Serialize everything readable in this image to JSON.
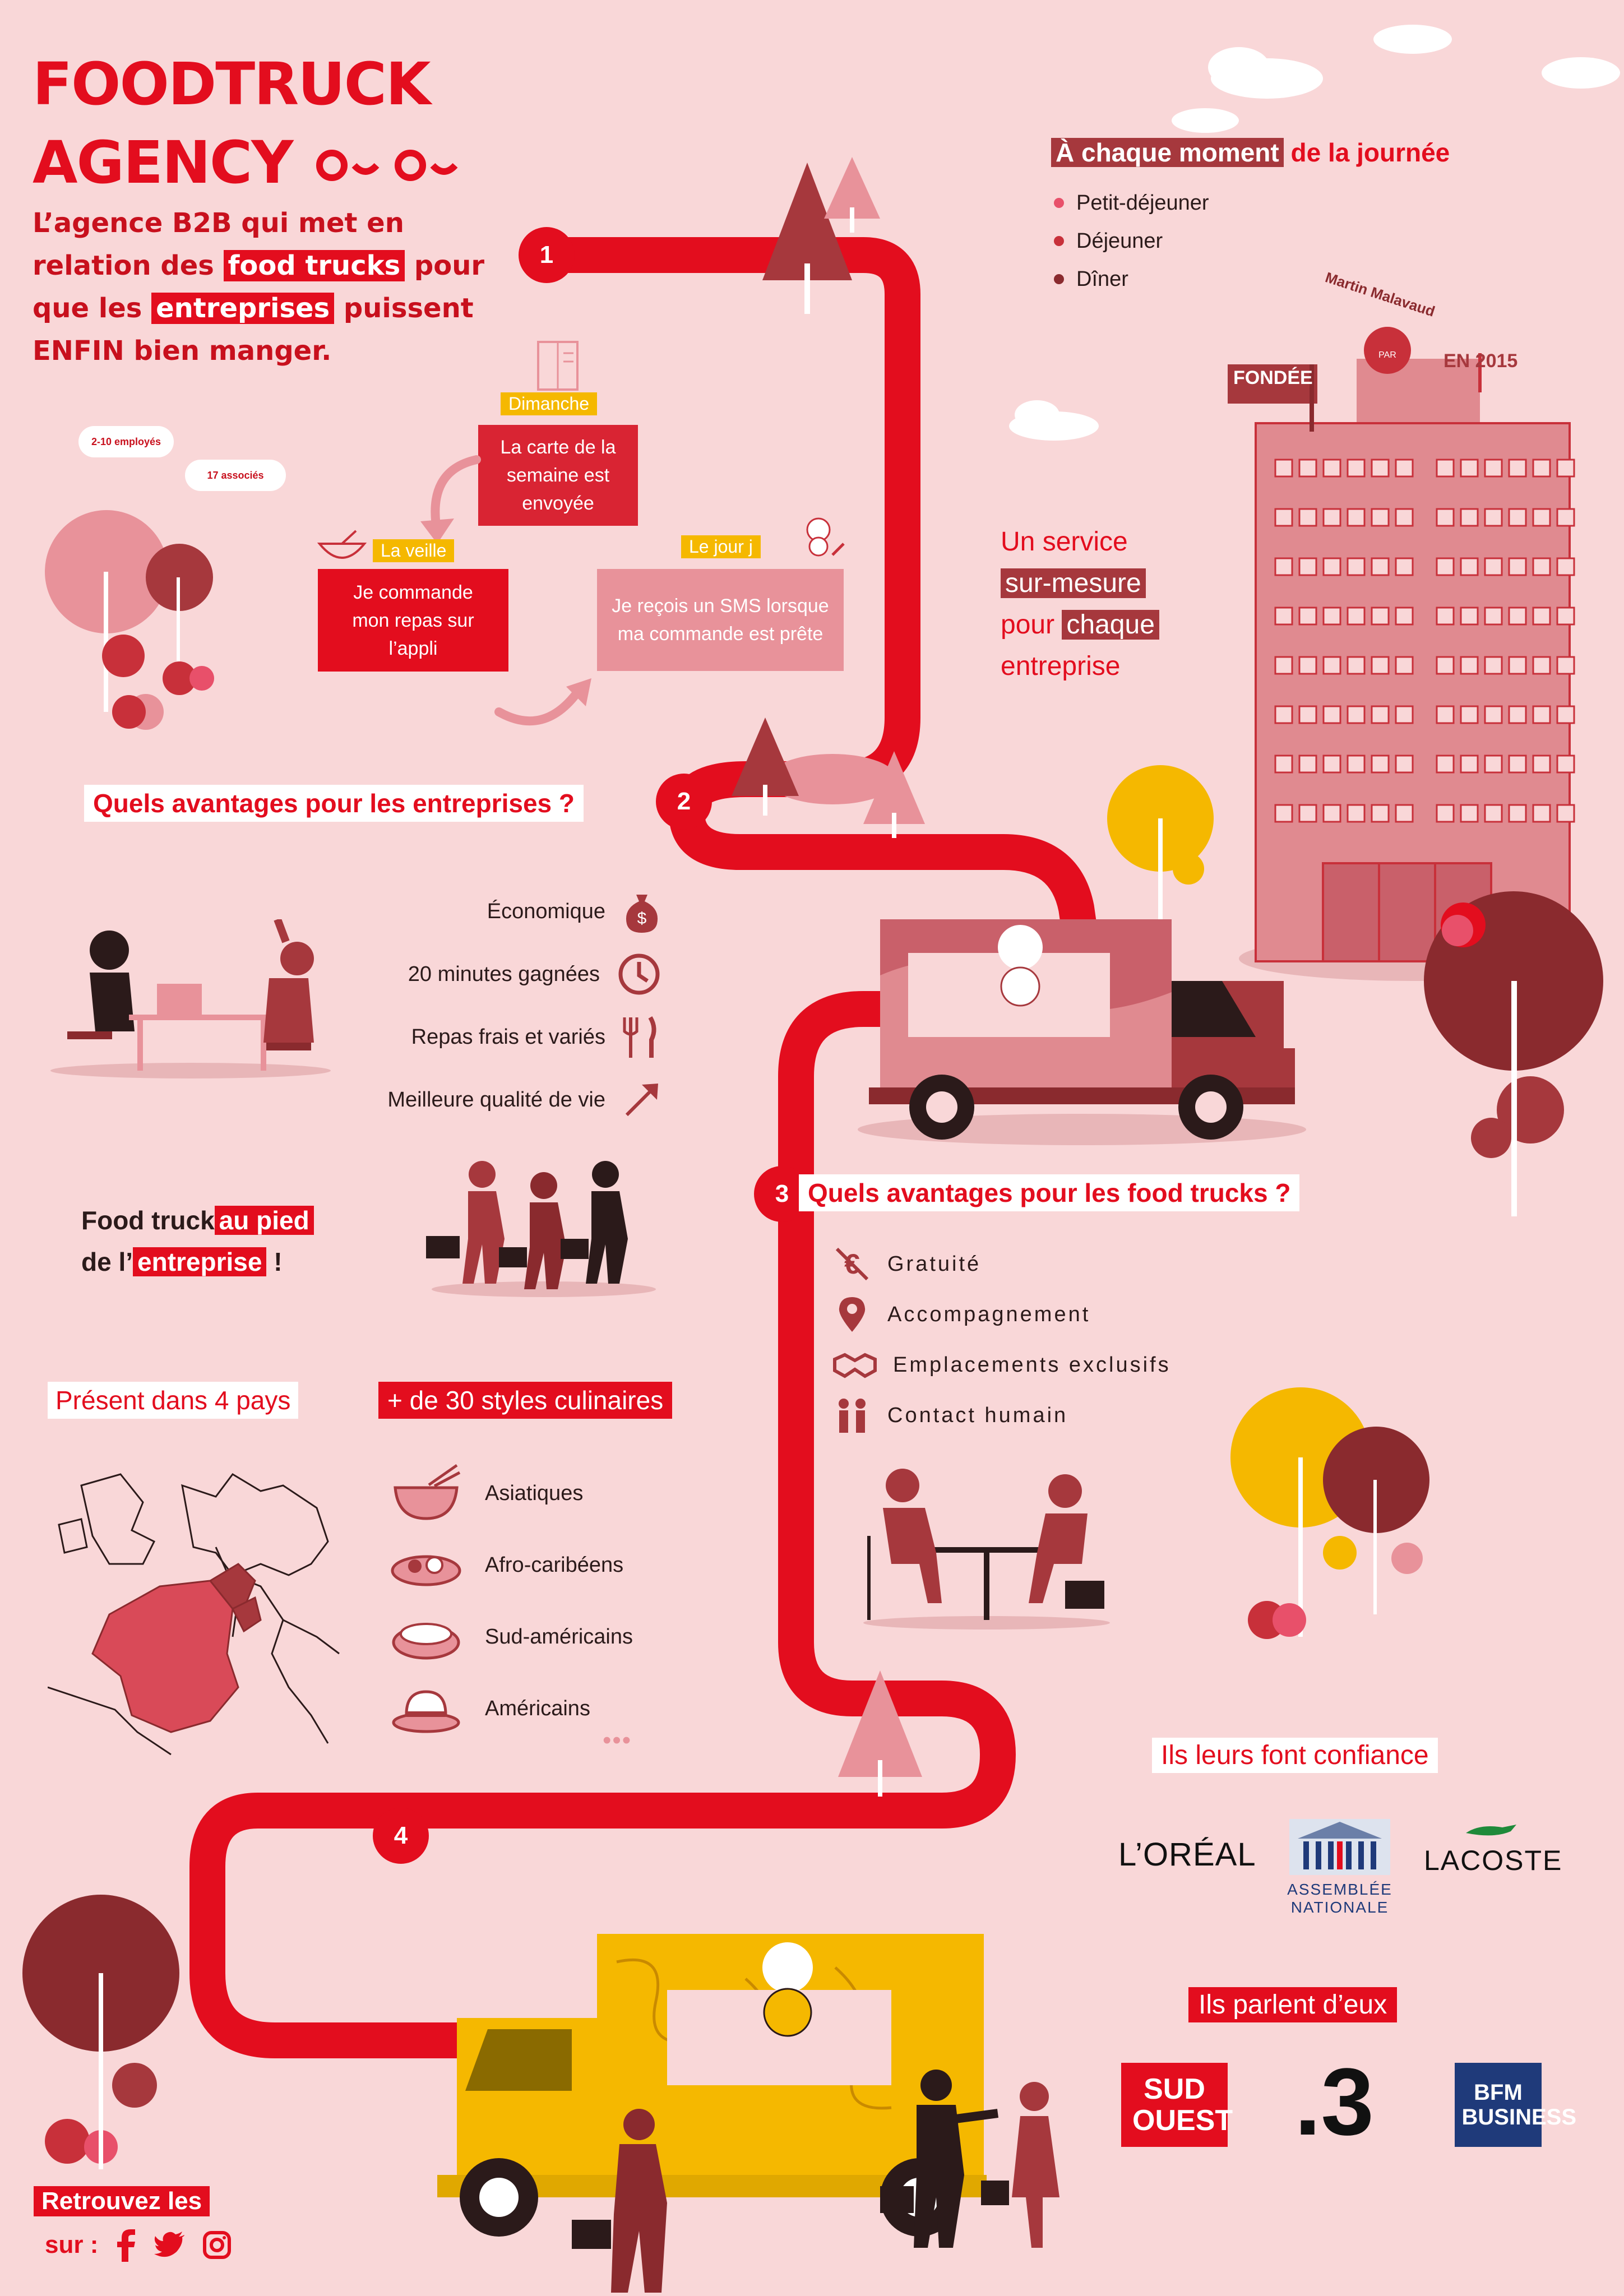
{
  "header": {
    "title_line1": "FOODTRUCK",
    "title_line2": "AGENCY",
    "tagline_pre": "L’agence B2B qui met en relation des ",
    "tagline_hl1": "food trucks",
    "tagline_mid1": " pour que les ",
    "tagline_hl2": "entreprises",
    "tagline_post": " puissent ENFIN bien manger."
  },
  "badges": {
    "employees": "2-10 employés",
    "associates": "17 associés"
  },
  "steps": {
    "step1_num": "1",
    "step2_num": "2",
    "step3_num": "3",
    "step4_num": "4"
  },
  "process": {
    "dimanche_tag": "Dimanche",
    "dimanche_text": "La carte de la semaine est envoyée",
    "veille_tag": "La veille",
    "veille_text": "Je commande mon repas sur l’appli",
    "jour_tag": "Le jour j",
    "jour_text": "Je reçois un SMS lorsque ma commande est prête"
  },
  "moments": {
    "heading_hl": "À chaque moment",
    "heading_rest": " de la journée",
    "items": [
      "Petit-déjeuner",
      "Déjeuner",
      "Dîner"
    ],
    "dot_colors": [
      "#e8506a",
      "#c8303a",
      "#8a2a2e"
    ]
  },
  "building": {
    "founder_label": "Martin Malavaud",
    "founder_badge": "PAR",
    "fondee": "FONDÉE",
    "year": "EN 2015"
  },
  "service": {
    "line1": "Un service",
    "line2": "sur-mesure",
    "line3_a": "pour ",
    "line3_b": "chaque",
    "line4": "entreprise"
  },
  "companies": {
    "heading": "Quels avantages pour les entreprises ?",
    "items": [
      "Économique",
      "20 minutes gagnées",
      "Repas frais et variés",
      "Meilleure qualité de vie"
    ],
    "icons": [
      "money-bag-icon",
      "clock-icon",
      "cutlery-icon",
      "trend-arrow-icon"
    ]
  },
  "foodtrucks": {
    "heading": "Quels avantages pour les food trucks ?",
    "items": [
      "Gratuité",
      "Accompagnement",
      "Emplacements exclusifs",
      "Contact humain"
    ],
    "icons": [
      "no-euro-icon",
      "location-pin-icon",
      "handshake-icon",
      "people-icon"
    ]
  },
  "pied": {
    "line1_a": "Food truck",
    "line1_hl": "au pied",
    "line2_a": "de  l’",
    "line2_hl": "entreprise",
    "line2_b": " !"
  },
  "presence": {
    "countries": "Présent dans 4 pays",
    "styles": "+ de 30 styles culinaires",
    "cuisines": [
      "Asiatiques",
      "Afro-caribéens",
      "Sud-américains",
      "Américains"
    ],
    "more": "•••"
  },
  "trust": {
    "heading": "Ils leurs font confiance",
    "logos": [
      "L’ORÉAL",
      "ASSEMBLÉE NATIONALE",
      "LACOSTE"
    ]
  },
  "press": {
    "heading": "Ils parlent d’eux",
    "logos": [
      "SUD OUEST",
      ".3",
      "BFM BUSINESS"
    ]
  },
  "social": {
    "line1": "Retrouvez les",
    "line2": "sur :",
    "icons": [
      "facebook-icon",
      "twitter-icon",
      "instagram-icon"
    ]
  },
  "colors": {
    "background": "#f9d7d8",
    "brand_red": "#e30d1e",
    "dark_red": "#a6383d",
    "yellow": "#f5b800",
    "pink": "#e8929a"
  }
}
